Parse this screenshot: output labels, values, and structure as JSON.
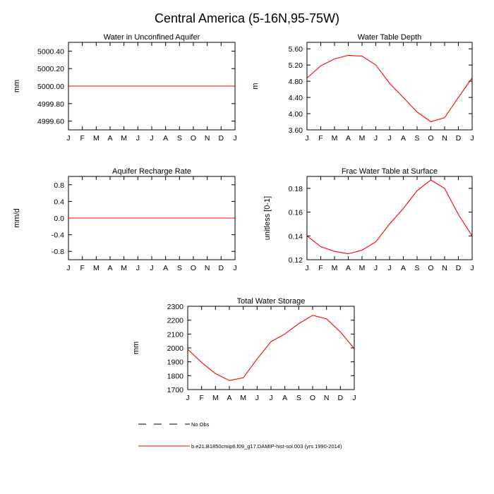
{
  "figure": {
    "title": "Central America (5-16N,95-75W)"
  },
  "months": [
    "J",
    "F",
    "M",
    "A",
    "M",
    "J",
    "J",
    "A",
    "S",
    "O",
    "N",
    "D",
    "J"
  ],
  "chart_data": [
    {
      "type": "line",
      "title": "Water in Unconfined Aquifer",
      "ylabel": "mm",
      "ylim": [
        4999.5,
        5000.5
      ],
      "yticks": [
        4999.6,
        4999.8,
        5000.0,
        5000.2,
        5000.4
      ],
      "yticklabels": [
        "4999.60",
        "4999.80",
        "5000.00",
        "5000.20",
        "5000.40"
      ],
      "series": [
        {
          "values": [
            5000,
            5000,
            5000,
            5000,
            5000,
            5000,
            5000,
            5000,
            5000,
            5000,
            5000,
            5000,
            5000
          ]
        }
      ]
    },
    {
      "type": "line",
      "title": "Water Table Depth",
      "ylabel": "m",
      "ylim": [
        3.6,
        5.76
      ],
      "yticks": [
        3.6,
        4.0,
        4.4,
        4.8,
        5.2,
        5.6
      ],
      "yticklabels": [
        "3.60",
        "4.00",
        "4.40",
        "4.80",
        "5.20",
        "5.60"
      ],
      "series": [
        {
          "values": [
            4.88,
            5.18,
            5.35,
            5.44,
            5.42,
            5.2,
            4.75,
            4.4,
            4.04,
            3.8,
            3.9,
            4.4,
            4.88
          ]
        }
      ]
    },
    {
      "type": "line",
      "title": "Aquifer Recharge Rate",
      "ylabel": "mm/d",
      "ylim": [
        -1.0,
        1.0
      ],
      "yticks": [
        -0.8,
        -0.4,
        0.0,
        0.4,
        0.8
      ],
      "yticklabels": [
        "-0.8",
        "-0.4",
        "0.0",
        "0.4",
        "0.8"
      ],
      "series": [
        {
          "values": [
            0,
            0,
            0,
            0,
            0,
            0,
            0,
            0,
            0,
            0,
            0,
            0,
            0
          ]
        }
      ]
    },
    {
      "type": "line",
      "title": "Frac Water Table at Surface",
      "ylabel": "unitless [0-1]",
      "ylim": [
        0.12,
        0.19
      ],
      "yticks": [
        0.12,
        0.14,
        0.16,
        0.18
      ],
      "yticklabels": [
        "0.12",
        "0.14",
        "0.16",
        "0.18"
      ],
      "series": [
        {
          "values": [
            0.14,
            0.131,
            0.127,
            0.125,
            0.128,
            0.135,
            0.15,
            0.163,
            0.178,
            0.187,
            0.18,
            0.158,
            0.14
          ]
        }
      ]
    },
    {
      "type": "line",
      "title": "Total Water Storage",
      "ylabel": "mm",
      "ylim": [
        1700,
        2300
      ],
      "yticks": [
        1700,
        1800,
        1900,
        2000,
        2100,
        2200,
        2300
      ],
      "yticklabels": [
        "1700",
        "1800",
        "1900",
        "2000",
        "2100",
        "2200",
        "2300"
      ],
      "series": [
        {
          "values": [
            1990,
            1895,
            1815,
            1765,
            1785,
            1920,
            2045,
            2100,
            2175,
            2235,
            2210,
            2115,
            1995
          ]
        }
      ]
    }
  ],
  "legend": {
    "entries": [
      {
        "label": "No Obs",
        "style": "dashed",
        "color": "#000000"
      },
      {
        "label": "b.e21.B1850cmip6.f09_g17.DAMIP-hist-sol.003 (yrs 1990-2014)",
        "style": "solid",
        "color": "#ff0000"
      }
    ]
  },
  "colors": {
    "series": "#ff0000",
    "axes": "#000000"
  }
}
